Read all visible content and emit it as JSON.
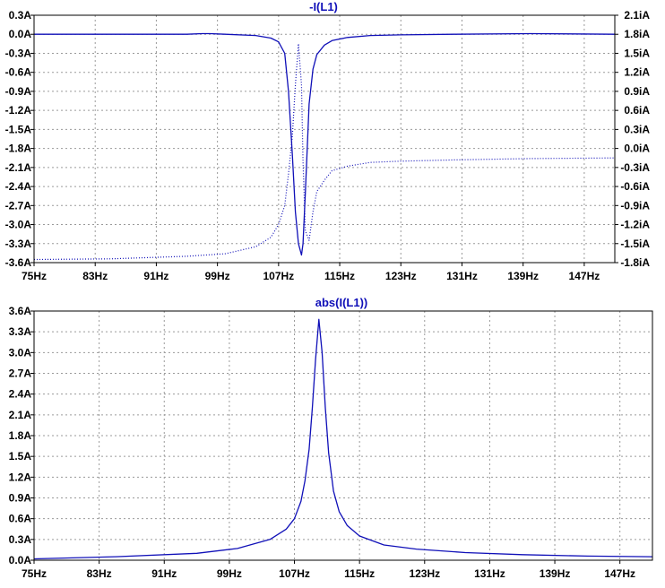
{
  "colors": {
    "trace": "#1010b8",
    "grid": "#9a9a9a",
    "axis": "#000000",
    "background": "#ffffff"
  },
  "chart_data": [
    {
      "type": "line",
      "title": "-I(L1)",
      "xlim": [
        75,
        151
      ],
      "ylim": [
        -3.6,
        0.3
      ],
      "y2lim": [
        -1.8,
        2.1
      ],
      "x_ticks": [
        "75Hz",
        "83Hz",
        "91Hz",
        "99Hz",
        "107Hz",
        "115Hz",
        "123Hz",
        "131Hz",
        "139Hz",
        "147Hz"
      ],
      "y_ticks": [
        "0.3A",
        "0.0A",
        "-0.3A",
        "-0.6A",
        "-0.9A",
        "-1.2A",
        "-1.5A",
        "-1.8A",
        "-2.1A",
        "-2.4A",
        "-2.7A",
        "-3.0A",
        "-3.3A",
        "-3.6A"
      ],
      "y2_ticks": [
        "2.1iA",
        "1.8iA",
        "1.5iA",
        "1.2iA",
        "0.9iA",
        "0.6iA",
        "0.3iA",
        "0.0iA",
        "-0.3iA",
        "-0.6iA",
        "-0.9iA",
        "-1.2iA",
        "-1.5iA",
        "-1.8iA"
      ],
      "grid": true,
      "series": [
        {
          "style": "solid",
          "x": [
            75,
            95,
            97,
            98,
            100,
            104,
            106,
            107,
            107.8,
            108.3,
            108.8,
            109.2,
            109.6,
            110,
            110.2,
            110.5,
            111,
            111.5,
            112,
            113,
            114,
            116,
            119,
            123,
            130,
            140,
            151
          ],
          "y": [
            0,
            0,
            0.01,
            0.01,
            0,
            -0.02,
            -0.06,
            -0.12,
            -0.3,
            -0.9,
            -1.9,
            -2.8,
            -3.3,
            -3.48,
            -3.3,
            -2.5,
            -1.1,
            -0.55,
            -0.32,
            -0.17,
            -0.1,
            -0.05,
            -0.02,
            -0.01,
            0,
            0.01,
            0
          ]
        },
        {
          "style": "dotted",
          "x": [
            75,
            85,
            95,
            100,
            104,
            106,
            107,
            107.8,
            108.3,
            108.8,
            109.2,
            109.6,
            110,
            110.2,
            110.5,
            111,
            111.5,
            112,
            113,
            114,
            116,
            119,
            123,
            130,
            140,
            151
          ],
          "y": [
            -1.75,
            -1.74,
            -1.7,
            -1.66,
            -1.55,
            -1.4,
            -1.2,
            -0.9,
            -0.4,
            0.2,
            1.0,
            1.65,
            1.0,
            -0.2,
            -1.3,
            -1.45,
            -1.0,
            -0.68,
            -0.5,
            -0.35,
            -0.28,
            -0.22,
            -0.2,
            -0.18,
            -0.16,
            -0.15
          ]
        }
      ]
    },
    {
      "type": "line",
      "title": "abs(I(L1))",
      "xlim": [
        75,
        151
      ],
      "ylim": [
        0,
        3.6
      ],
      "x_ticks": [
        "75Hz",
        "83Hz",
        "91Hz",
        "99Hz",
        "107Hz",
        "115Hz",
        "123Hz",
        "131Hz",
        "139Hz",
        "147Hz"
      ],
      "y_ticks": [
        "3.6A",
        "3.3A",
        "3.0A",
        "2.7A",
        "2.4A",
        "2.1A",
        "1.8A",
        "1.5A",
        "1.2A",
        "0.9A",
        "0.6A",
        "0.3A",
        "0.0A"
      ],
      "grid": true,
      "series": [
        {
          "style": "solid",
          "x": [
            75,
            85,
            95,
            100,
            104,
            106,
            107,
            107.8,
            108.3,
            108.8,
            109.2,
            109.6,
            110,
            110.4,
            110.8,
            111.2,
            111.8,
            112.5,
            113.5,
            115,
            118,
            122,
            128,
            135,
            143,
            151
          ],
          "y": [
            0.02,
            0.05,
            0.1,
            0.17,
            0.3,
            0.45,
            0.6,
            0.85,
            1.15,
            1.6,
            2.2,
            2.9,
            3.48,
            3.0,
            2.2,
            1.55,
            1.0,
            0.7,
            0.5,
            0.35,
            0.22,
            0.16,
            0.11,
            0.08,
            0.06,
            0.05
          ]
        }
      ]
    }
  ]
}
